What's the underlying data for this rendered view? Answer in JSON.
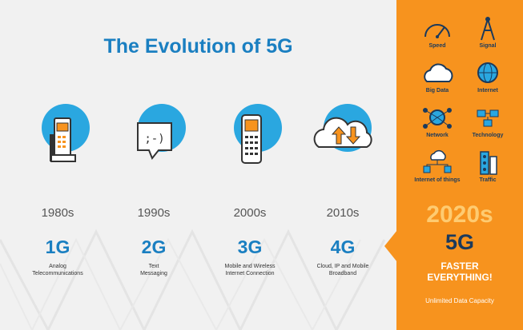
{
  "title": "The Evolution of 5G",
  "eras": [
    {
      "decade": "1980s",
      "gen": "1G",
      "desc": "Analog\nTelecommunications",
      "icon": "brick-phone-icon"
    },
    {
      "decade": "1990s",
      "gen": "2G",
      "desc": "Text\nMessaging",
      "icon": "text-message-icon"
    },
    {
      "decade": "2000s",
      "gen": "3G",
      "desc": "Mobile and Wireless\nInternet Connection",
      "icon": "mobile-phone-icon"
    },
    {
      "decade": "2010s",
      "gen": "4G",
      "desc": "Cloud, IP and Mobile\nBroadband",
      "icon": "cloud-sync-icon"
    }
  ],
  "panel": {
    "features": [
      {
        "label": "Speed",
        "icon": "speedometer-icon"
      },
      {
        "label": "Signal",
        "icon": "signal-tower-icon"
      },
      {
        "label": "Big Data",
        "icon": "big-data-icon"
      },
      {
        "label": "Internet",
        "icon": "globe-icon"
      },
      {
        "label": "Network",
        "icon": "network-icon"
      },
      {
        "label": "Technology",
        "icon": "technology-icon"
      },
      {
        "label": "Internet of things",
        "icon": "iot-icon"
      },
      {
        "label": "Traffic",
        "icon": "traffic-icon"
      }
    ],
    "year": "2020s",
    "gen": "5G",
    "tagline_1": "FASTER",
    "tagline_2": "EVERYTHING!",
    "sub": "Unlimited Data Capacity"
  },
  "colors": {
    "accent_blue": "#1a7fc1",
    "panel_orange": "#f7931e",
    "navy": "#1b3a5c"
  }
}
